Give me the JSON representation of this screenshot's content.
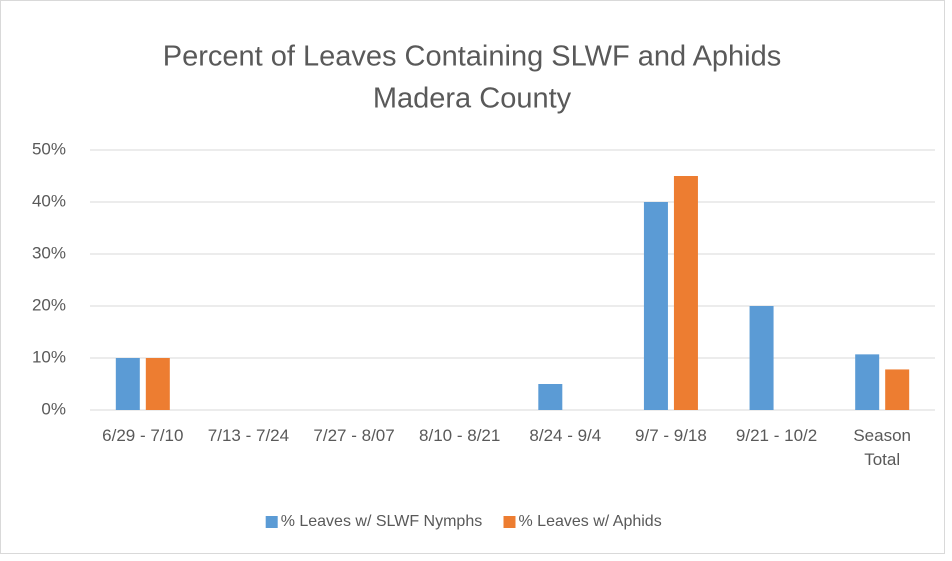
{
  "chart_data": {
    "type": "bar",
    "title": "Percent of Leaves Containing SLWF and Aphids",
    "subtitle": "Madera County",
    "categories": [
      "6/29 - 7/10",
      "7/13 - 7/24",
      "7/27 - 8/07",
      "8/10 - 8/21",
      "8/24 - 9/4",
      "9/7 - 9/18",
      "9/21 - 10/2",
      "Season Total"
    ],
    "series": [
      {
        "name": "% Leaves w/ SLWF Nymphs",
        "color": "#5b9bd5",
        "values": [
          10,
          0,
          0,
          0,
          5,
          40,
          20,
          10.7
        ]
      },
      {
        "name": "% Leaves w/ Aphids",
        "color": "#ed7d31",
        "values": [
          10,
          0,
          0,
          0,
          0,
          45,
          0,
          7.8
        ]
      }
    ],
    "ylim": [
      0,
      50
    ],
    "yticks": [
      {
        "value": 0,
        "label": "0%"
      },
      {
        "value": 10,
        "label": "10%"
      },
      {
        "value": 20,
        "label": "20%"
      },
      {
        "value": 30,
        "label": "30%"
      },
      {
        "value": 40,
        "label": "40%"
      },
      {
        "value": 50,
        "label": "50%"
      }
    ],
    "grid": true,
    "legend": "bottom"
  }
}
